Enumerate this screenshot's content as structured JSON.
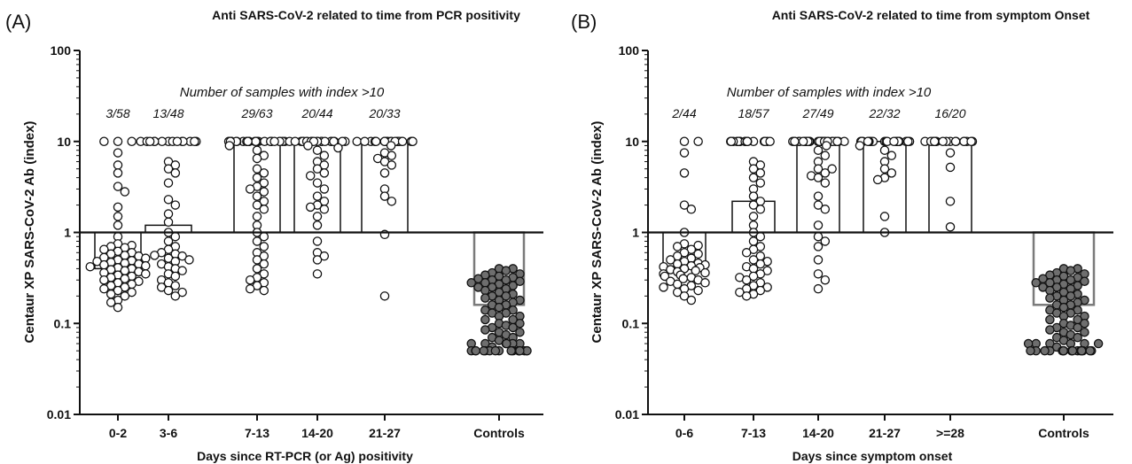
{
  "chart_data": [
    {
      "type": "scatter",
      "panel_label": "(A)",
      "title": "Anti SARS-CoV-2 related to time from PCR positivity",
      "xlabel": "Days since RT-PCR (or Ag) positivity",
      "ylabel": "Centaur XP SARS-CoV-2 Ab (index)",
      "yscale": "log",
      "ylim": [
        0.01,
        100
      ],
      "yticks": [
        0.01,
        0.1,
        1,
        10,
        100
      ],
      "ytick_labels": [
        "0.01",
        "0.1",
        "1",
        "10",
        "100"
      ],
      "reference_line": 1,
      "annotation": "Number of samples with index >10",
      "groups": [
        {
          "label": "0-2",
          "ratio": "3/58",
          "bar": 0.4,
          "fill": "#ffffff",
          "points": [
            10,
            10,
            10,
            7.5,
            5.5,
            4.5,
            3.2,
            2.8,
            1.9,
            1.5,
            1.2,
            0.9,
            0.75,
            0.72,
            0.7,
            0.68,
            0.65,
            0.62,
            0.6,
            0.58,
            0.56,
            0.55,
            0.53,
            0.52,
            0.5,
            0.49,
            0.48,
            0.47,
            0.46,
            0.45,
            0.44,
            0.43,
            0.42,
            0.41,
            0.4,
            0.39,
            0.38,
            0.37,
            0.36,
            0.35,
            0.34,
            0.33,
            0.32,
            0.31,
            0.3,
            0.29,
            0.28,
            0.27,
            0.26,
            0.25,
            0.24,
            0.23,
            0.22,
            0.21,
            0.2,
            0.18,
            0.17,
            0.15
          ]
        },
        {
          "label": "3-6",
          "ratio": "13/48",
          "bar": 1.2,
          "fill": "#ffffff",
          "points": [
            10,
            10,
            10,
            10,
            10,
            10,
            10,
            10,
            10,
            10,
            10,
            10,
            10,
            10,
            6,
            5.5,
            5,
            4.5,
            3.5,
            2.3,
            2.0,
            1.6,
            1.3,
            1.0,
            0.9,
            0.8,
            0.7,
            0.65,
            0.6,
            0.58,
            0.56,
            0.55,
            0.52,
            0.5,
            0.48,
            0.45,
            0.42,
            0.4,
            0.38,
            0.35,
            0.33,
            0.3,
            0.28,
            0.26,
            0.25,
            0.23,
            0.22,
            0.2
          ]
        },
        {
          "label": "7-13",
          "ratio": "29/63",
          "bar": 10,
          "fill": "#ffffff",
          "points": [
            10,
            10,
            10,
            10,
            10,
            10,
            10,
            10,
            10,
            10,
            10,
            10,
            10,
            10,
            10,
            10,
            10,
            10,
            10,
            10,
            10,
            10,
            10,
            10,
            10,
            10,
            10,
            10,
            10,
            10,
            9,
            8,
            7,
            6.5,
            5,
            4.5,
            4,
            3.5,
            3.2,
            3.0,
            2.8,
            2.5,
            2.2,
            2.0,
            1.8,
            1.5,
            1.2,
            1.0,
            0.9,
            0.8,
            0.7,
            0.6,
            0.55,
            0.5,
            0.45,
            0.4,
            0.35,
            0.32,
            0.3,
            0.28,
            0.26,
            0.24,
            0.23
          ]
        },
        {
          "label": "14-20",
          "ratio": "20/44",
          "bar": 10,
          "fill": "#ffffff",
          "points": [
            10,
            10,
            10,
            10,
            10,
            10,
            10,
            10,
            10,
            10,
            10,
            10,
            10,
            10,
            10,
            10,
            10,
            10,
            10,
            10,
            10,
            9,
            8.5,
            8,
            7,
            6,
            5.5,
            5,
            4.5,
            4.2,
            3.5,
            3.0,
            2.5,
            2.2,
            2.0,
            1.9,
            1.8,
            1.5,
            1.2,
            0.8,
            0.6,
            0.55,
            0.5,
            0.35
          ]
        },
        {
          "label": "21-27",
          "ratio": "20/33",
          "bar": 10,
          "fill": "#ffffff",
          "points": [
            10,
            10,
            10,
            10,
            10,
            10,
            10,
            10,
            10,
            10,
            10,
            10,
            10,
            10,
            10,
            10,
            10,
            10,
            10,
            10,
            10,
            9,
            7.5,
            7,
            6.5,
            6,
            5.5,
            4.5,
            3,
            2.5,
            2.2,
            0.95,
            0.2
          ]
        },
        {
          "label": "Controls",
          "ratio": "",
          "bar": 0.16,
          "fill": "#555555",
          "points": [
            0.4,
            0.4,
            0.38,
            0.36,
            0.35,
            0.34,
            0.33,
            0.32,
            0.31,
            0.3,
            0.3,
            0.29,
            0.28,
            0.28,
            0.27,
            0.26,
            0.25,
            0.25,
            0.24,
            0.23,
            0.22,
            0.21,
            0.2,
            0.2,
            0.19,
            0.18,
            0.18,
            0.17,
            0.16,
            0.16,
            0.15,
            0.14,
            0.14,
            0.13,
            0.13,
            0.12,
            0.12,
            0.11,
            0.11,
            0.1,
            0.1,
            0.095,
            0.09,
            0.09,
            0.085,
            0.08,
            0.08,
            0.075,
            0.07,
            0.07,
            0.065,
            0.06,
            0.06,
            0.06,
            0.06,
            0.06,
            0.06,
            0.055,
            0.05,
            0.05,
            0.05,
            0.05,
            0.05,
            0.05,
            0.05,
            0.05,
            0.05,
            0.05,
            0.05,
            0.05,
            0.05,
            0.05,
            0.05,
            0.05
          ]
        }
      ]
    },
    {
      "type": "scatter",
      "panel_label": "(B)",
      "title": "Anti SARS-CoV-2 related to time from symptom Onset",
      "xlabel": "Days since symptom onset",
      "ylabel": "Centaur XP SARS-CoV-2 Ab (index)",
      "yscale": "log",
      "ylim": [
        0.01,
        100
      ],
      "yticks": [
        0.01,
        0.1,
        1,
        10,
        100
      ],
      "ytick_labels": [
        "0.01",
        "0.1",
        "1",
        "10",
        "100"
      ],
      "reference_line": 1,
      "annotation": "Number of samples with index >10",
      "groups": [
        {
          "label": "0-6",
          "ratio": "2/44",
          "bar": 0.4,
          "fill": "#ffffff",
          "points": [
            10,
            10,
            7.5,
            4.5,
            2.0,
            1.8,
            1.0,
            0.75,
            0.72,
            0.7,
            0.65,
            0.6,
            0.58,
            0.55,
            0.52,
            0.5,
            0.48,
            0.46,
            0.45,
            0.44,
            0.43,
            0.42,
            0.41,
            0.4,
            0.39,
            0.38,
            0.37,
            0.36,
            0.35,
            0.34,
            0.33,
            0.32,
            0.31,
            0.3,
            0.29,
            0.28,
            0.27,
            0.26,
            0.25,
            0.24,
            0.23,
            0.22,
            0.2,
            0.18
          ]
        },
        {
          "label": "7-13",
          "ratio": "18/57",
          "bar": 2.2,
          "fill": "#ffffff",
          "points": [
            10,
            10,
            10,
            10,
            10,
            10,
            10,
            10,
            10,
            10,
            10,
            10,
            10,
            10,
            10,
            10,
            10,
            10,
            10,
            6,
            5.5,
            5,
            4.5,
            4,
            3.5,
            3,
            2.5,
            2.2,
            2.0,
            1.8,
            1.5,
            1.2,
            1.0,
            0.9,
            0.8,
            0.7,
            0.65,
            0.6,
            0.55,
            0.5,
            0.48,
            0.45,
            0.42,
            0.4,
            0.38,
            0.35,
            0.33,
            0.32,
            0.3,
            0.28,
            0.26,
            0.25,
            0.24,
            0.23,
            0.22,
            0.21,
            0.2
          ]
        },
        {
          "label": "14-20",
          "ratio": "27/49",
          "bar": 10,
          "fill": "#ffffff",
          "points": [
            10,
            10,
            10,
            10,
            10,
            10,
            10,
            10,
            10,
            10,
            10,
            10,
            10,
            10,
            10,
            10,
            10,
            10,
            10,
            10,
            10,
            10,
            10,
            10,
            10,
            10,
            10,
            10,
            9,
            8,
            7,
            6,
            5,
            5,
            4.5,
            4.2,
            4,
            3.5,
            2.5,
            2.0,
            1.8,
            1.2,
            0.9,
            0.8,
            0.7,
            0.5,
            0.35,
            0.3,
            0.24
          ]
        },
        {
          "label": "21-27",
          "ratio": "22/32",
          "bar": 10,
          "fill": "#ffffff",
          "points": [
            10,
            10,
            10,
            10,
            10,
            10,
            10,
            10,
            10,
            10,
            10,
            10,
            10,
            10,
            10,
            10,
            10,
            10,
            10,
            10,
            10,
            10,
            9,
            8,
            7,
            6,
            5,
            4.5,
            4,
            3.8,
            1.5,
            1.0
          ]
        },
        {
          "label": ">=28",
          "ratio": "16/20",
          "bar": 10,
          "fill": "#ffffff",
          "points": [
            10,
            10,
            10,
            10,
            10,
            10,
            10,
            10,
            10,
            10,
            10,
            10,
            10,
            10,
            10,
            10,
            7.5,
            5.2,
            2.2,
            1.15
          ]
        },
        {
          "label": "Controls",
          "ratio": "",
          "bar": 0.16,
          "fill": "#555555",
          "points": [
            0.4,
            0.4,
            0.38,
            0.36,
            0.35,
            0.34,
            0.33,
            0.32,
            0.31,
            0.3,
            0.3,
            0.29,
            0.28,
            0.28,
            0.27,
            0.26,
            0.25,
            0.25,
            0.24,
            0.23,
            0.22,
            0.21,
            0.2,
            0.2,
            0.19,
            0.18,
            0.18,
            0.17,
            0.16,
            0.16,
            0.15,
            0.14,
            0.14,
            0.13,
            0.13,
            0.12,
            0.12,
            0.11,
            0.11,
            0.1,
            0.1,
            0.095,
            0.09,
            0.09,
            0.085,
            0.08,
            0.08,
            0.075,
            0.07,
            0.07,
            0.065,
            0.06,
            0.06,
            0.06,
            0.06,
            0.06,
            0.06,
            0.055,
            0.05,
            0.05,
            0.05,
            0.05,
            0.05,
            0.05,
            0.05,
            0.05,
            0.05,
            0.05,
            0.05,
            0.05,
            0.05,
            0.05,
            0.05,
            0.05
          ]
        }
      ]
    }
  ]
}
